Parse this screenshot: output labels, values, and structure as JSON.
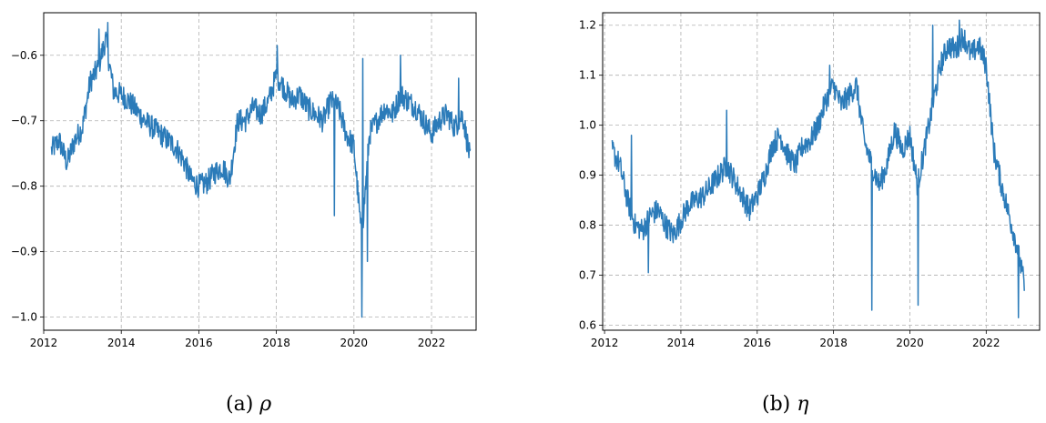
{
  "chart_data": [
    {
      "type": "line",
      "caption": "(a)",
      "symbol": "ρ",
      "xlim": [
        2012.0,
        2023.15
      ],
      "ylim": [
        -1.02,
        -0.535
      ],
      "xticks": [
        2012,
        2014,
        2016,
        2018,
        2020,
        2022
      ],
      "yticks": [
        -1.0,
        -0.9,
        -0.8,
        -0.7,
        -0.6
      ],
      "ytick_labels": [
        "−1.0",
        "−0.9",
        "−0.8",
        "−0.7",
        "−0.6"
      ],
      "grid": true,
      "color": "#2b7bb9",
      "x": [
        2012.2,
        2012.4,
        2012.6,
        2012.8,
        2013.0,
        2013.2,
        2013.4,
        2013.6,
        2013.8,
        2014.0,
        2014.2,
        2014.4,
        2014.6,
        2014.8,
        2015.0,
        2015.2,
        2015.4,
        2015.6,
        2015.8,
        2016.0,
        2016.2,
        2016.4,
        2016.6,
        2016.8,
        2017.0,
        2017.2,
        2017.4,
        2017.6,
        2017.8,
        2018.0,
        2018.2,
        2018.4,
        2018.6,
        2018.8,
        2019.0,
        2019.2,
        2019.4,
        2019.6,
        2019.8,
        2020.0,
        2020.2,
        2020.4,
        2020.6,
        2020.8,
        2021.0,
        2021.2,
        2021.4,
        2021.6,
        2021.8,
        2022.0,
        2022.2,
        2022.4,
        2022.6,
        2022.8,
        2023.0
      ],
      "y": [
        -0.745,
        -0.73,
        -0.765,
        -0.73,
        -0.71,
        -0.64,
        -0.62,
        -0.575,
        -0.655,
        -0.66,
        -0.67,
        -0.685,
        -0.7,
        -0.71,
        -0.72,
        -0.73,
        -0.74,
        -0.76,
        -0.79,
        -0.8,
        -0.795,
        -0.78,
        -0.77,
        -0.79,
        -0.7,
        -0.7,
        -0.68,
        -0.69,
        -0.67,
        -0.63,
        -0.65,
        -0.67,
        -0.66,
        -0.68,
        -0.69,
        -0.7,
        -0.67,
        -0.68,
        -0.72,
        -0.74,
        -0.88,
        -0.72,
        -0.7,
        -0.68,
        -0.69,
        -0.66,
        -0.67,
        -0.68,
        -0.7,
        -0.72,
        -0.7,
        -0.69,
        -0.71,
        -0.69,
        -0.76
      ],
      "spikes": [
        {
          "x": 2013.43,
          "y": -0.56
        },
        {
          "x": 2013.65,
          "y": -0.55
        },
        {
          "x": 2018.02,
          "y": -0.585
        },
        {
          "x": 2019.5,
          "y": -0.845
        },
        {
          "x": 2020.2,
          "y": -1.0
        },
        {
          "x": 2020.23,
          "y": -0.605
        },
        {
          "x": 2020.35,
          "y": -0.915
        },
        {
          "x": 2021.2,
          "y": -0.6
        },
        {
          "x": 2022.7,
          "y": -0.635
        }
      ]
    },
    {
      "type": "line",
      "caption": "(b)",
      "symbol": "η",
      "xlim": [
        2011.95,
        2023.4
      ],
      "ylim": [
        0.59,
        1.225
      ],
      "xticks": [
        2012,
        2014,
        2016,
        2018,
        2020,
        2022
      ],
      "yticks": [
        0.6,
        0.7,
        0.8,
        0.9,
        1.0,
        1.1,
        1.2
      ],
      "ytick_labels": [
        "0.6",
        "0.7",
        "0.8",
        "0.9",
        "1.0",
        "1.1",
        "1.2"
      ],
      "grid": true,
      "color": "#2b7bb9",
      "x": [
        2012.2,
        2012.4,
        2012.6,
        2012.8,
        2013.0,
        2013.2,
        2013.4,
        2013.6,
        2013.8,
        2014.0,
        2014.2,
        2014.4,
        2014.6,
        2014.8,
        2015.0,
        2015.2,
        2015.4,
        2015.6,
        2015.8,
        2016.0,
        2016.2,
        2016.4,
        2016.6,
        2016.8,
        2017.0,
        2017.2,
        2017.4,
        2017.6,
        2017.8,
        2018.0,
        2018.2,
        2018.4,
        2018.6,
        2018.8,
        2019.0,
        2019.2,
        2019.4,
        2019.6,
        2019.8,
        2020.0,
        2020.2,
        2020.4,
        2020.6,
        2020.8,
        2021.0,
        2021.2,
        2021.4,
        2021.6,
        2021.8,
        2022.0,
        2022.2,
        2022.4,
        2022.6,
        2022.8,
        2023.0
      ],
      "y": [
        0.95,
        0.92,
        0.85,
        0.8,
        0.79,
        0.82,
        0.83,
        0.8,
        0.78,
        0.81,
        0.84,
        0.85,
        0.86,
        0.88,
        0.9,
        0.92,
        0.89,
        0.86,
        0.83,
        0.86,
        0.9,
        0.96,
        0.98,
        0.94,
        0.92,
        0.96,
        0.97,
        1.0,
        1.05,
        1.08,
        1.04,
        1.06,
        1.08,
        0.97,
        0.92,
        0.88,
        0.92,
        0.99,
        0.95,
        0.98,
        0.88,
        0.96,
        1.04,
        1.12,
        1.16,
        1.15,
        1.18,
        1.14,
        1.16,
        1.12,
        0.95,
        0.88,
        0.82,
        0.76,
        0.68
      ],
      "spikes": [
        {
          "x": 2012.2,
          "y": 0.97
        },
        {
          "x": 2012.7,
          "y": 0.98
        },
        {
          "x": 2013.15,
          "y": 0.705
        },
        {
          "x": 2015.2,
          "y": 1.03
        },
        {
          "x": 2017.9,
          "y": 1.12
        },
        {
          "x": 2019.0,
          "y": 0.63
        },
        {
          "x": 2020.22,
          "y": 0.64
        },
        {
          "x": 2020.6,
          "y": 1.2
        },
        {
          "x": 2021.3,
          "y": 1.21
        },
        {
          "x": 2022.85,
          "y": 0.615
        }
      ]
    }
  ]
}
